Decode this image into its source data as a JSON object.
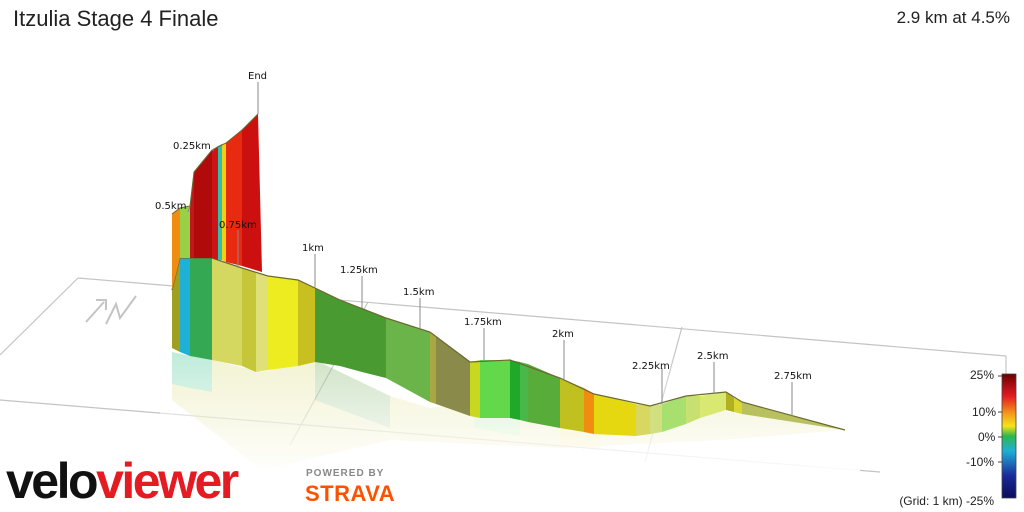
{
  "header": {
    "title": "Itzulia Stage 4 Finale",
    "summary": "2.9 km at 4.5%"
  },
  "profile": {
    "markers": [
      "End",
      "0.25km",
      "0.5km",
      "0.75km",
      "1km",
      "1.25km",
      "1.5km",
      "1.75km",
      "2km",
      "2.25km",
      "2.5km",
      "2.75km"
    ]
  },
  "compass": {
    "label": "N"
  },
  "legend": {
    "labels": [
      "25%",
      "10%",
      "0%",
      "-10%"
    ],
    "grid_note": "(Grid: 1 km) -25%",
    "colors": [
      "#7a0000",
      "#e41b23",
      "#f5e31a",
      "#2db84b",
      "#1fb0d6",
      "#1a2a9a",
      "#0b0b5a"
    ]
  },
  "branding": {
    "logo_part1": "velo",
    "logo_part2": "viewer",
    "powered_by": "POWERED BY",
    "strava": "STRAVA"
  }
}
